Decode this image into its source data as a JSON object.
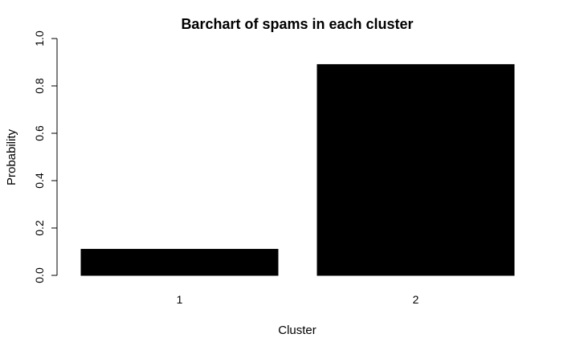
{
  "chart_data": {
    "type": "bar",
    "title": "Barchart of spams in each cluster",
    "xlabel": "Cluster",
    "ylabel": "Probability",
    "categories": [
      "1",
      "2"
    ],
    "values": [
      0.11,
      0.89
    ],
    "ylim": [
      0,
      1
    ],
    "yticks": [
      "0.0",
      "0.2",
      "0.4",
      "0.6",
      "0.8",
      "1.0"
    ],
    "bar_color": "#000000",
    "grid": false,
    "legend": "none"
  }
}
